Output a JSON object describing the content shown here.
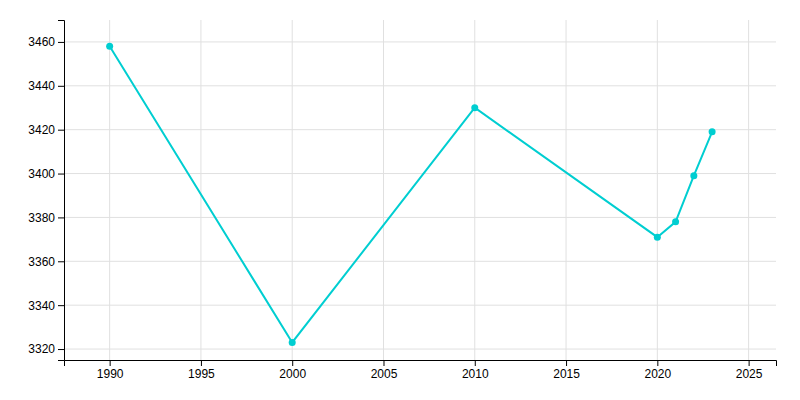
{
  "chart_data": {
    "type": "line",
    "x": [
      1990,
      2000,
      2010,
      2020,
      2021,
      2022,
      2023
    ],
    "values": [
      3458,
      3323,
      3430,
      3371,
      3378,
      3399,
      3419
    ],
    "color": "#00CED1",
    "marker": "circle",
    "xlim": [
      1987.5,
      2026.5
    ],
    "ylim": [
      3315,
      3470
    ],
    "xticks": [
      1990,
      1995,
      2000,
      2005,
      2010,
      2015,
      2020,
      2025
    ],
    "yticks": [
      3320,
      3340,
      3360,
      3380,
      3400,
      3420,
      3440,
      3460
    ],
    "grid": true
  }
}
